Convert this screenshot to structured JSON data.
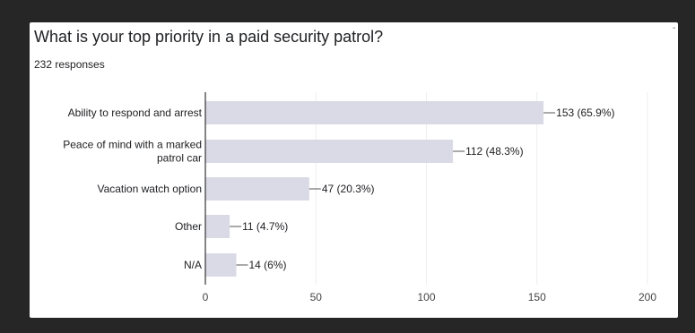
{
  "question": {
    "title": "What is your top priority in a paid security patrol?",
    "responses": "232 responses"
  },
  "colors": {
    "bar": "#dadae6",
    "axis": "#333333",
    "grid": "#eeeeee",
    "leader": "#555555"
  },
  "chart_data": {
    "type": "bar",
    "orientation": "horizontal",
    "categories": [
      [
        "Ability to respond and arrest"
      ],
      [
        "Peace of mind with a marked",
        "patrol car"
      ],
      [
        "Vacation watch option"
      ],
      [
        "Other"
      ],
      [
        "N/A"
      ]
    ],
    "values": [
      153,
      112,
      47,
      11,
      14
    ],
    "data_labels": [
      "153 (65.9%)",
      "112 (48.3%)",
      "47 (20.3%)",
      "11 (4.7%)",
      "14 (6%)"
    ],
    "xlim": [
      0,
      200
    ],
    "xticks": [
      0,
      50,
      100,
      150,
      200
    ],
    "grid": true
  }
}
